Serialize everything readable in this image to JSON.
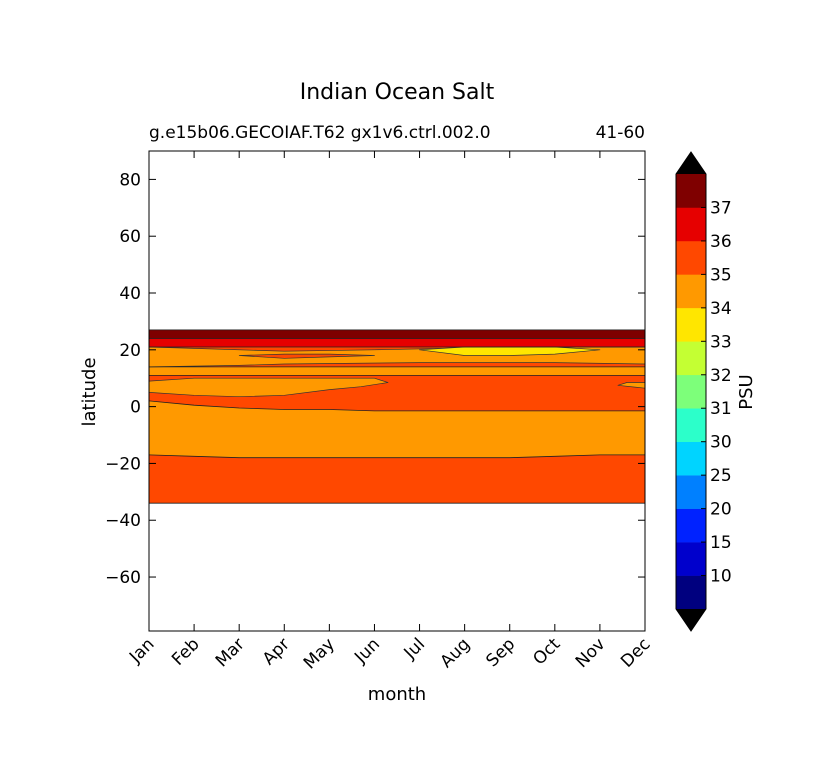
{
  "chart_data": {
    "type": "contour",
    "title": "Indian Ocean Salt",
    "subtitle_left": "g.e15b06.GECOIAF.T62 gx1v6.ctrl.002.0",
    "subtitle_right": "41-60",
    "xlabel": "month",
    "ylabel": "latitude",
    "x_categories": [
      "Jan",
      "Feb",
      "Mar",
      "Apr",
      "May",
      "Jun",
      "Jul",
      "Aug",
      "Sep",
      "Oct",
      "Nov",
      "Dec"
    ],
    "yticks": [
      80,
      60,
      40,
      20,
      0,
      -20,
      -40,
      -60
    ],
    "ylim": [
      -79,
      90
    ],
    "colorbar": {
      "label": "PSU",
      "tick_labels": [
        "10",
        "15",
        "20",
        "25",
        "30",
        "31",
        "32",
        "33",
        "34",
        "35",
        "36",
        "37"
      ],
      "colors": [
        "#00007f",
        "#0000cc",
        "#0022ff",
        "#0080ff",
        "#00d4ff",
        "#2cffca",
        "#7dff7a",
        "#c4ff33",
        "#ffe600",
        "#ff9900",
        "#ff4800",
        "#e60000",
        "#7f0000"
      ],
      "extend": "both",
      "extend_color": "#000000"
    },
    "bands": [
      {
        "name": "lat -34 to -17",
        "range": "35-36",
        "color": "#ff4800",
        "lat_bottom": -34,
        "lat_top": [
          -17,
          -17.5,
          -18,
          -18,
          -18,
          -18,
          -18,
          -18,
          -18,
          -17.5,
          -17,
          -17
        ]
      },
      {
        "name": "lat -17 to 2",
        "range": "34-35",
        "color": "#ff9900",
        "lat_bottom": [
          -17,
          -17.5,
          -18,
          -18,
          -18,
          -18,
          -18,
          -18,
          -18,
          -17.5,
          -17,
          -17
        ],
        "lat_top": [
          2,
          0.5,
          -0.5,
          -1,
          -1,
          -1.5,
          -1.5,
          -1.5,
          -1.5,
          -1.5,
          -1.5,
          -1.5
        ]
      },
      {
        "name": "lat 2 to 11",
        "range": "35-36",
        "color": "#ff4800"
      },
      {
        "name": "lat 11 to 14",
        "range": "34-35",
        "color": "#ff9900"
      },
      {
        "name": "lat 14 to 21",
        "range": "35-36",
        "color": "#ff4800"
      },
      {
        "name": "lat 21 to 24",
        "range": "36-37",
        "color": "#e60000"
      },
      {
        "name": "lat 24 to 27",
        "range": "37+",
        "color": "#7f0000"
      }
    ],
    "grid": false
  }
}
